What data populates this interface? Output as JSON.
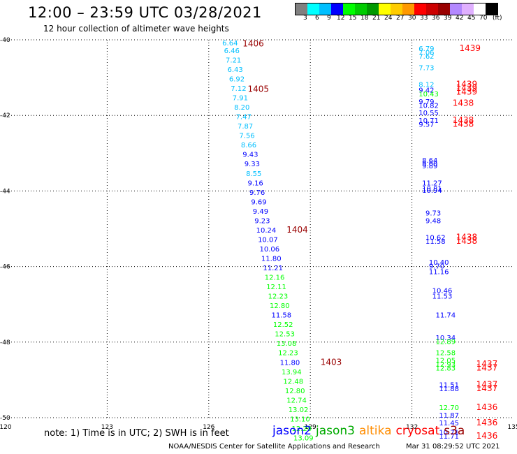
{
  "header": {
    "title": "12:00 – 23:59 UTC 03/28/2021",
    "subtitle": "12 hour collection of altimeter wave heights"
  },
  "color_scale": {
    "unit": "(ft)",
    "colors": [
      "#808080",
      "#00ffff",
      "#00bfff",
      "#0000ff",
      "#00ff00",
      "#00cc00",
      "#009900",
      "#ffff00",
      "#ffcc00",
      "#ff9900",
      "#ff0000",
      "#cc0000",
      "#990000",
      "#b388ff",
      "#e0b0ff",
      "#ffffff",
      "#000000"
    ],
    "labels": [
      "3",
      "6",
      "9",
      "12",
      "15",
      "18",
      "21",
      "24",
      "27",
      "30",
      "33",
      "36",
      "39",
      "42",
      "45",
      "70"
    ]
  },
  "footer": {
    "note": "note: 1) Time is in UTC; 2) SWH is in feet",
    "credit": "NOAA/NESDIS Center for Satellite Applications and Research",
    "timestamp": "Mar 31 08:29:52 UTC 2021"
  },
  "satellites": [
    {
      "name": "jason2",
      "color": "#0000ff"
    },
    {
      "name": "jason3",
      "color": "#00aa00"
    },
    {
      "name": "altika",
      "color": "#ff8c00"
    },
    {
      "name": "cryosat",
      "color": "#ff0000"
    },
    {
      "name": "s3a",
      "color": "#990000"
    }
  ],
  "chart_data": {
    "type": "scatter",
    "xlim": [
      120,
      135
    ],
    "ylim": [
      -50,
      -40
    ],
    "xticks": [
      120,
      123,
      126,
      129,
      132,
      135
    ],
    "yticks": [
      -40,
      -42,
      -44,
      -46,
      -48,
      -50
    ],
    "grid": true,
    "left_track": [
      {
        "x": 126.4,
        "y": -40.15,
        "v": "6.64",
        "c": "#00bfff"
      },
      {
        "x": 126.45,
        "y": -40.35,
        "v": "6.46",
        "c": "#00bfff"
      },
      {
        "x": 126.5,
        "y": -40.6,
        "v": "7.21",
        "c": "#00bfff"
      },
      {
        "x": 126.55,
        "y": -40.85,
        "v": "6.43",
        "c": "#00bfff"
      },
      {
        "x": 126.6,
        "y": -41.1,
        "v": "6.92",
        "c": "#00bfff"
      },
      {
        "x": 126.65,
        "y": -41.35,
        "v": "7.12",
        "c": "#00bfff"
      },
      {
        "x": 126.7,
        "y": -41.6,
        "v": "7.91",
        "c": "#00bfff"
      },
      {
        "x": 126.75,
        "y": -41.85,
        "v": "8.20",
        "c": "#00bfff"
      },
      {
        "x": 126.8,
        "y": -42.1,
        "v": "7.47",
        "c": "#00bfff"
      },
      {
        "x": 126.85,
        "y": -42.35,
        "v": "7.87",
        "c": "#00bfff"
      },
      {
        "x": 126.9,
        "y": -42.6,
        "v": "7.56",
        "c": "#00bfff"
      },
      {
        "x": 126.95,
        "y": -42.85,
        "v": "8.66",
        "c": "#00bfff"
      },
      {
        "x": 127.0,
        "y": -43.1,
        "v": "9.43",
        "c": "#0000ff"
      },
      {
        "x": 127.05,
        "y": -43.35,
        "v": "9.33",
        "c": "#0000ff"
      },
      {
        "x": 127.1,
        "y": -43.6,
        "v": "8.55",
        "c": "#00bfff"
      },
      {
        "x": 127.15,
        "y": -43.85,
        "v": "9.16",
        "c": "#0000ff"
      },
      {
        "x": 127.2,
        "y": -44.1,
        "v": "9.76",
        "c": "#0000ff"
      },
      {
        "x": 127.25,
        "y": -44.35,
        "v": "9.69",
        "c": "#0000ff"
      },
      {
        "x": 127.3,
        "y": -44.6,
        "v": "9.49",
        "c": "#0000ff"
      },
      {
        "x": 127.35,
        "y": -44.85,
        "v": "9.23",
        "c": "#0000ff"
      },
      {
        "x": 127.4,
        "y": -45.1,
        "v": "10.24",
        "c": "#0000ff"
      },
      {
        "x": 127.45,
        "y": -45.35,
        "v": "10.07",
        "c": "#0000ff"
      },
      {
        "x": 127.5,
        "y": -45.6,
        "v": "10.06",
        "c": "#0000ff"
      },
      {
        "x": 127.55,
        "y": -45.85,
        "v": "11.80",
        "c": "#0000ff"
      },
      {
        "x": 127.6,
        "y": -46.1,
        "v": "11.21",
        "c": "#0000ff"
      },
      {
        "x": 127.65,
        "y": -46.35,
        "v": "12.16",
        "c": "#00ff00"
      },
      {
        "x": 127.7,
        "y": -46.6,
        "v": "12.11",
        "c": "#00ff00"
      },
      {
        "x": 127.75,
        "y": -46.85,
        "v": "12.23",
        "c": "#00ff00"
      },
      {
        "x": 127.8,
        "y": -47.1,
        "v": "12.80",
        "c": "#00ff00"
      },
      {
        "x": 127.85,
        "y": -47.35,
        "v": "11.58",
        "c": "#0000ff"
      },
      {
        "x": 127.9,
        "y": -47.6,
        "v": "12.52",
        "c": "#00ff00"
      },
      {
        "x": 127.95,
        "y": -47.85,
        "v": "12.53",
        "c": "#00ff00"
      },
      {
        "x": 128.0,
        "y": -48.1,
        "v": "13.08",
        "c": "#00ff00"
      },
      {
        "x": 128.05,
        "y": -48.35,
        "v": "12.23",
        "c": "#00ff00"
      },
      {
        "x": 128.1,
        "y": -48.6,
        "v": "11.80",
        "c": "#0000ff"
      },
      {
        "x": 128.15,
        "y": -48.85,
        "v": "13.94",
        "c": "#00ff00"
      },
      {
        "x": 128.2,
        "y": -49.1,
        "v": "12.48",
        "c": "#00ff00"
      },
      {
        "x": 128.25,
        "y": -49.35,
        "v": "12.80",
        "c": "#00ff00"
      },
      {
        "x": 128.3,
        "y": -49.6,
        "v": "12.74",
        "c": "#00ff00"
      },
      {
        "x": 128.35,
        "y": -49.85,
        "v": "13.02",
        "c": "#00ff00"
      },
      {
        "x": 128.4,
        "y": -50.1,
        "v": "13.10",
        "c": "#00ff00"
      },
      {
        "x": 128.45,
        "y": -50.35,
        "v": "12.20",
        "c": "#00ff00"
      },
      {
        "x": 128.5,
        "y": -50.6,
        "v": "13.09",
        "c": "#00ff00"
      }
    ],
    "right_track": [
      {
        "x": 132.2,
        "y": -40.3,
        "v": "6.79",
        "c": "#00bfff"
      },
      {
        "x": 132.2,
        "y": -40.4,
        "v": "7.06",
        "c": "#00bfff"
      },
      {
        "x": 132.2,
        "y": -40.5,
        "v": "7.62",
        "c": "#00bfff"
      },
      {
        "x": 132.2,
        "y": -40.8,
        "v": "7.73",
        "c": "#00bfff"
      },
      {
        "x": 132.2,
        "y": -41.25,
        "v": "8.12",
        "c": "#00bfff"
      },
      {
        "x": 132.2,
        "y": -41.4,
        "v": "9.42",
        "c": "#0000ff"
      },
      {
        "x": 132.2,
        "y": -41.5,
        "v": "10.43",
        "c": "#00ff00"
      },
      {
        "x": 132.2,
        "y": -41.7,
        "v": "9.79",
        "c": "#0000ff"
      },
      {
        "x": 132.2,
        "y": -41.8,
        "v": "10.82",
        "c": "#0000ff"
      },
      {
        "x": 132.2,
        "y": -42.0,
        "v": "10.55",
        "c": "#0000ff"
      },
      {
        "x": 132.2,
        "y": -42.2,
        "v": "10.71",
        "c": "#0000ff"
      },
      {
        "x": 132.2,
        "y": -42.3,
        "v": "9.57",
        "c": "#0000ff"
      },
      {
        "x": 132.3,
        "y": -43.25,
        "v": "8.64",
        "c": "#0000ff"
      },
      {
        "x": 132.3,
        "y": -43.35,
        "v": "9.00",
        "c": "#0000ff"
      },
      {
        "x": 132.3,
        "y": -43.4,
        "v": "9.89",
        "c": "#0000ff"
      },
      {
        "x": 132.3,
        "y": -43.85,
        "v": "11.27",
        "c": "#0000ff"
      },
      {
        "x": 132.3,
        "y": -44.0,
        "v": "10.81",
        "c": "#0000ff"
      },
      {
        "x": 132.3,
        "y": -44.05,
        "v": "10.94",
        "c": "#0000ff"
      },
      {
        "x": 132.4,
        "y": -44.65,
        "v": "9.73",
        "c": "#0000ff"
      },
      {
        "x": 132.4,
        "y": -44.85,
        "v": "9.48",
        "c": "#0000ff"
      },
      {
        "x": 132.4,
        "y": -45.3,
        "v": "10.62",
        "c": "#0000ff"
      },
      {
        "x": 132.4,
        "y": -45.4,
        "v": "11.58",
        "c": "#0000ff"
      },
      {
        "x": 132.5,
        "y": -45.95,
        "v": "10.40",
        "c": "#0000ff"
      },
      {
        "x": 132.5,
        "y": -46.05,
        "v": "9.70",
        "c": "#0000ff"
      },
      {
        "x": 132.5,
        "y": -46.2,
        "v": "11.16",
        "c": "#0000ff"
      },
      {
        "x": 132.6,
        "y": -46.7,
        "v": "10.46",
        "c": "#0000ff"
      },
      {
        "x": 132.6,
        "y": -46.85,
        "v": "11.53",
        "c": "#0000ff"
      },
      {
        "x": 132.7,
        "y": -47.35,
        "v": "11.74",
        "c": "#0000ff"
      },
      {
        "x": 132.7,
        "y": -47.95,
        "v": "10.34",
        "c": "#0000ff"
      },
      {
        "x": 132.7,
        "y": -48.05,
        "v": "12.89",
        "c": "#00ff00"
      },
      {
        "x": 132.7,
        "y": -48.35,
        "v": "12.58",
        "c": "#00ff00"
      },
      {
        "x": 132.7,
        "y": -48.55,
        "v": "12.05",
        "c": "#00ff00"
      },
      {
        "x": 132.7,
        "y": -48.65,
        "v": "12.93",
        "c": "#00ff00"
      },
      {
        "x": 132.7,
        "y": -48.75,
        "v": "12.83",
        "c": "#00ff00"
      },
      {
        "x": 132.8,
        "y": -49.2,
        "v": "11.51",
        "c": "#0000ff"
      },
      {
        "x": 132.8,
        "y": -49.3,
        "v": "11.88",
        "c": "#0000ff"
      },
      {
        "x": 132.8,
        "y": -49.8,
        "v": "12.70",
        "c": "#00ff00"
      },
      {
        "x": 132.8,
        "y": -50.0,
        "v": "11.87",
        "c": "#0000ff"
      },
      {
        "x": 132.8,
        "y": -50.2,
        "v": "11.45",
        "c": "#0000ff"
      },
      {
        "x": 132.8,
        "y": -50.45,
        "v": "10.71",
        "c": "#0000ff"
      },
      {
        "x": 132.8,
        "y": -50.55,
        "v": "11.71",
        "c": "#0000ff"
      }
    ],
    "time_labels": [
      {
        "x": 127.0,
        "y": -40.18,
        "v": "1406",
        "c": "#990000"
      },
      {
        "x": 127.15,
        "y": -41.38,
        "v": "1405",
        "c": "#990000"
      },
      {
        "x": 128.3,
        "y": -45.1,
        "v": "1404",
        "c": "#990000"
      },
      {
        "x": 129.3,
        "y": -48.6,
        "v": "1403",
        "c": "#990000"
      },
      {
        "x": 133.4,
        "y": -40.3,
        "v": "1439",
        "c": "#ff0000"
      },
      {
        "x": 133.3,
        "y": -41.25,
        "v": "1439",
        "c": "#ff0000"
      },
      {
        "x": 133.3,
        "y": -41.35,
        "v": "1439",
        "c": "#ff0000"
      },
      {
        "x": 133.3,
        "y": -41.45,
        "v": "1439",
        "c": "#ff0000"
      },
      {
        "x": 133.2,
        "y": -41.75,
        "v": "1438",
        "c": "#ff0000"
      },
      {
        "x": 133.2,
        "y": -42.2,
        "v": "1438",
        "c": "#ff0000"
      },
      {
        "x": 133.2,
        "y": -42.3,
        "v": "1438",
        "c": "#ff0000"
      },
      {
        "x": 133.3,
        "y": -45.3,
        "v": "1438",
        "c": "#ff0000"
      },
      {
        "x": 133.3,
        "y": -45.4,
        "v": "1438",
        "c": "#ff0000"
      },
      {
        "x": 133.9,
        "y": -48.65,
        "v": "1437",
        "c": "#ff0000"
      },
      {
        "x": 133.9,
        "y": -48.75,
        "v": "1437",
        "c": "#ff0000"
      },
      {
        "x": 133.9,
        "y": -49.2,
        "v": "1437",
        "c": "#ff0000"
      },
      {
        "x": 133.9,
        "y": -49.3,
        "v": "1437",
        "c": "#ff0000"
      },
      {
        "x": 133.9,
        "y": -49.8,
        "v": "1436",
        "c": "#ff0000"
      },
      {
        "x": 133.9,
        "y": -50.2,
        "v": "1436",
        "c": "#ff0000"
      },
      {
        "x": 133.9,
        "y": -50.55,
        "v": "1436",
        "c": "#ff0000"
      }
    ]
  }
}
